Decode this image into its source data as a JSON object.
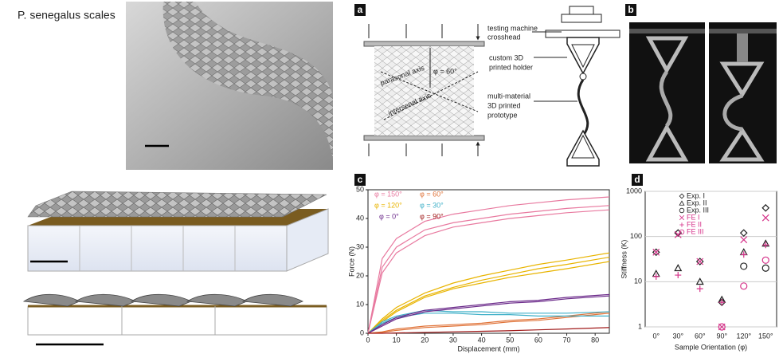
{
  "title": "P. senegalus scales",
  "panel_labels": [
    "a",
    "b",
    "c",
    "d"
  ],
  "diagram_labels": [
    "testing machine",
    "crosshead",
    "custom 3D",
    "printed holder",
    "multi-material",
    "3D printed",
    "prototype",
    "φ = 60°",
    "parasonal axis",
    "intersenal axis"
  ],
  "chart_data": [
    {
      "type": "line",
      "xlabel": "Displacement (mm)",
      "ylabel": "Force (N)",
      "xlim": [
        0,
        85
      ],
      "xticks": [
        0,
        10,
        20,
        30,
        40,
        50,
        60,
        70,
        80
      ],
      "ylim": [
        0,
        50
      ],
      "yticks": [
        0,
        10,
        20,
        30,
        40,
        50
      ],
      "x": [
        0,
        5,
        10,
        20,
        30,
        40,
        50,
        60,
        70,
        85
      ],
      "series": [
        {
          "name": "φ = 150°",
          "color": "#e8799f",
          "runs": [
            [
              0,
              26,
              33,
              39,
              41.5,
              43,
              44.5,
              45.5,
              46.5,
              47.5
            ],
            [
              0,
              23,
              30,
              36,
              38.5,
              40,
              41.5,
              42.5,
              43.5,
              44.5
            ],
            [
              0,
              21,
              28,
              34,
              37,
              38.5,
              40,
              41,
              42,
              43
            ]
          ]
        },
        {
          "name": "φ = 60°",
          "color": "#e0743a",
          "runs": [
            [
              0,
              0.5,
              1.5,
              2.5,
              3,
              3.5,
              4.5,
              5,
              6,
              7.5
            ],
            [
              0,
              0.3,
              1,
              2,
              2.5,
              3,
              4,
              4.5,
              5.5,
              7
            ]
          ]
        },
        {
          "name": "φ = 120°",
          "color": "#e8b400",
          "runs": [
            [
              0,
              5,
              9,
              14,
              17.5,
              20,
              22,
              24,
              25.5,
              28
            ],
            [
              0,
              4.5,
              8,
              13,
              16,
              18.5,
              20.5,
              22.5,
              24,
              26.5
            ],
            [
              0,
              4,
              7.5,
              12.5,
              15.5,
              17.5,
              19.5,
              21,
              22.5,
              25
            ]
          ]
        },
        {
          "name": "φ = 30°",
          "color": "#3fb0c8",
          "runs": [
            [
              0,
              4,
              6,
              8,
              7.5,
              7.5,
              7,
              7,
              7,
              7.5
            ],
            [
              0,
              3.5,
              5.5,
              7,
              7,
              6.5,
              6.5,
              6,
              6,
              6
            ]
          ]
        },
        {
          "name": "φ = 0°",
          "color": "#6b2a8a",
          "runs": [
            [
              0,
              3,
              5.5,
              8,
              9,
              10,
              11,
              11.5,
              12.5,
              13.5
            ],
            [
              0,
              2.5,
              5,
              7.5,
              8.5,
              9.5,
              10.5,
              11,
              12,
              13
            ]
          ]
        },
        {
          "name": "φ = 90°",
          "color": "#a01a1a",
          "runs": [
            [
              0,
              0,
              0.1,
              0.3,
              0.5,
              0.7,
              0.9,
              1.2,
              1.5,
              2
            ]
          ]
        }
      ]
    },
    {
      "type": "scatter",
      "xlabel": "Sample Orientation (φ)",
      "ylabel": "Stiffness (K)",
      "categories": [
        "0°",
        "30°",
        "60°",
        "90°",
        "120°",
        "150°"
      ],
      "ylim": [
        1,
        1000
      ],
      "yticks": [
        1,
        10,
        100,
        1000
      ],
      "log_y": true,
      "series": [
        {
          "name": "Exp. I",
          "color": "#222222",
          "marker": "diamond",
          "values": [
            45,
            120,
            28,
            3.5,
            120,
            430
          ]
        },
        {
          "name": "Exp. II",
          "color": "#222222",
          "marker": "triangle",
          "values": [
            15,
            20,
            10,
            4,
            45,
            70
          ]
        },
        {
          "name": "Exp. III",
          "color": "#222222",
          "marker": "circle",
          "values": [
            null,
            null,
            null,
            null,
            22,
            20
          ]
        },
        {
          "name": "FE I",
          "color": "#d6338a",
          "marker": "x",
          "values": [
            45,
            110,
            28,
            1,
            85,
            260
          ]
        },
        {
          "name": "FE II",
          "color": "#d6338a",
          "marker": "plus",
          "values": [
            13,
            14,
            7,
            3.5,
            40,
            65
          ]
        },
        {
          "name": "FE III",
          "color": "#d6338a",
          "marker": "circle",
          "values": [
            null,
            null,
            null,
            1,
            8,
            30
          ]
        }
      ]
    }
  ]
}
